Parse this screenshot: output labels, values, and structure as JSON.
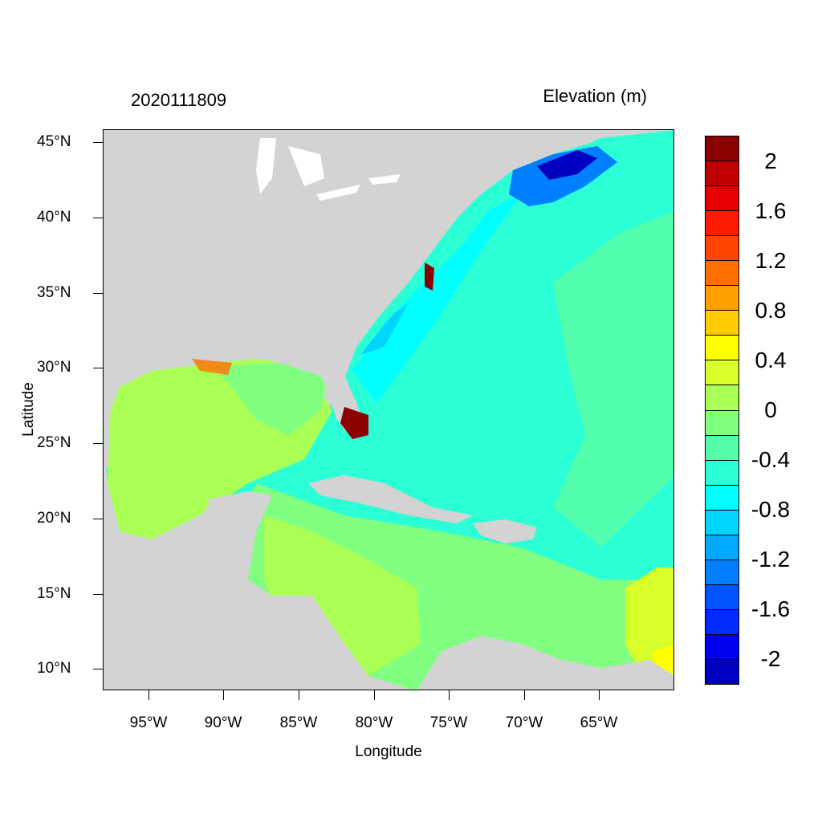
{
  "title_left": "2020111809",
  "title_right": "Elevation (m)",
  "xlabel": "Longitude",
  "ylabel": "Latitude",
  "lat_ticks": [
    "45°N",
    "40°N",
    "35°N",
    "30°N",
    "25°N",
    "20°N",
    "15°N",
    "10°N"
  ],
  "lon_ticks": [
    "95°W",
    "90°W",
    "85°W",
    "80°W",
    "75°W",
    "70°W",
    "65°W"
  ],
  "colorbar": {
    "labels": [
      "2",
      "1.6",
      "1.2",
      "0.8",
      "0.4",
      "0",
      "-0.4",
      "-0.8",
      "-1.2",
      "-1.6",
      "-2"
    ],
    "colors": [
      "#8b0000",
      "#c00000",
      "#e60000",
      "#ff1a00",
      "#ff4500",
      "#ff7000",
      "#ff9f00",
      "#ffcc00",
      "#ffff00",
      "#d8ff2a",
      "#aaff55",
      "#80ff80",
      "#55ffaa",
      "#2affd5",
      "#00ffff",
      "#00d5ff",
      "#00aaff",
      "#0080ff",
      "#0055ff",
      "#002aff",
      "#0000ee",
      "#0000c0"
    ]
  },
  "colors": {
    "land": "#d3d3d3",
    "lakes": "#ffffff"
  }
}
